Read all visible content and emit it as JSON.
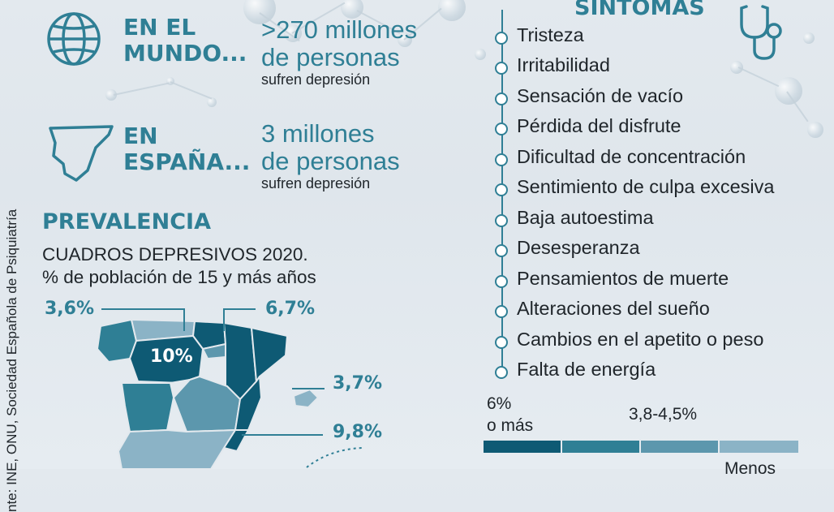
{
  "world": {
    "label_line1": "EN EL",
    "label_line2": "MUNDO...",
    "stat_line1": ">270 millones",
    "stat_line2": "de personas",
    "stat_sub": "sufren depresión"
  },
  "spain": {
    "label_line1": "EN",
    "label_line2": "ESPAÑA...",
    "stat_line1": "3 millones",
    "stat_line2": "de personas",
    "stat_sub": "sufren depresión"
  },
  "prevalence": {
    "title": "PREVALENCIA",
    "subtitle_line1": "CUADROS DEPRESIVOS 2020.",
    "subtitle_line2": "% de población de 15 y más años"
  },
  "map_values": {
    "northwest": "3,6%",
    "north": "6,7%",
    "center": "10%",
    "baleares": "3,7%",
    "east": "9,8%"
  },
  "symptoms": {
    "title": "SÍNTOMAS",
    "items": [
      "Tristeza",
      "Irritabilidad",
      "Sensación de vacío",
      "Pérdida del disfrute",
      "Dificultad de concentración",
      "Sentimiento de culpa excesiva",
      "Baja autoestima",
      "Desesperanza",
      "Pensamientos de muerte",
      "Alteraciones del sueño",
      "Cambios en el apetito o peso",
      "Falta de energía"
    ]
  },
  "legend": {
    "high_line1": "6%",
    "high_line2": "o más",
    "mid": "3,8-4,5%",
    "low": "Menos",
    "colors": [
      "#0e5a74",
      "#2f7f95",
      "#5c97ad",
      "#8bb3c6"
    ]
  },
  "source": "nte: INE, ONU, Sociedad Española de Psiquiatría",
  "icons": [
    "globe-icon",
    "spain-outline-icon",
    "stethoscope-icon"
  ]
}
